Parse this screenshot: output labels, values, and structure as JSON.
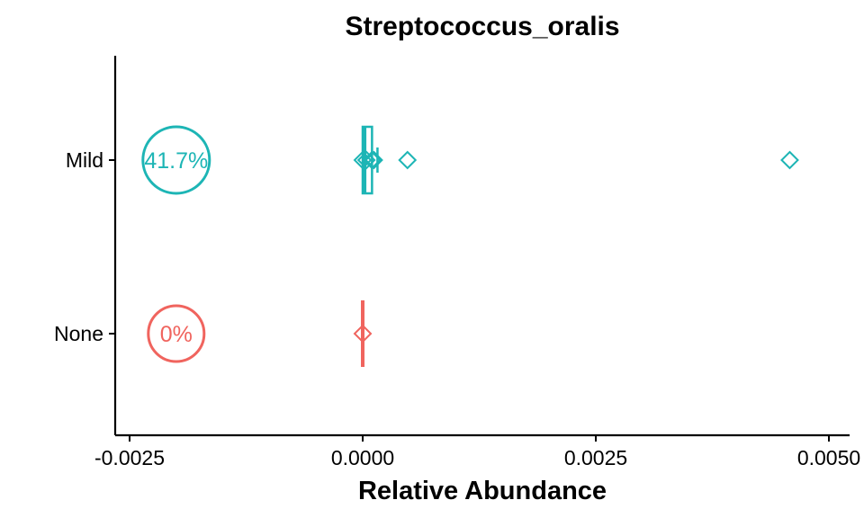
{
  "chart_data": {
    "type": "boxplot",
    "title": "Streptococcus_oralis",
    "xlabel": "Relative Abundance",
    "ylabel": "",
    "xlim": [
      -0.0026,
      0.00525
    ],
    "x_ticks": [
      {
        "value": -0.0025,
        "label": "-0.0025"
      },
      {
        "value": 0.0,
        "label": "0.0000"
      },
      {
        "value": 0.0025,
        "label": "0.0025"
      },
      {
        "value": 0.005,
        "label": "0.0050"
      }
    ],
    "categories": [
      "None",
      "Mild"
    ],
    "groups": [
      {
        "name": "None",
        "color": "#F0645E",
        "prevalence_label": "0%",
        "prevalence_x": -0.002,
        "box": {
          "q1": 0.0,
          "median": 0.0,
          "q3": 0.0,
          "whisker_low": 0.0,
          "whisker_high": 0.0
        },
        "mean": 0.0,
        "points": [
          0.0
        ]
      },
      {
        "name": "Mild",
        "color": "#1DB5B5",
        "prevalence_label": "41.7%",
        "prevalence_x": -0.002,
        "box": {
          "q1": 0.0,
          "median": 2e-05,
          "q3": 0.0001,
          "whisker_low": 0.0,
          "whisker_high": 0.0001
        },
        "mean": 0.00012,
        "points": [
          0.0,
          4e-05,
          0.0001,
          0.00012,
          0.00048,
          0.00458
        ]
      }
    ],
    "grid": false,
    "legend": "none"
  }
}
